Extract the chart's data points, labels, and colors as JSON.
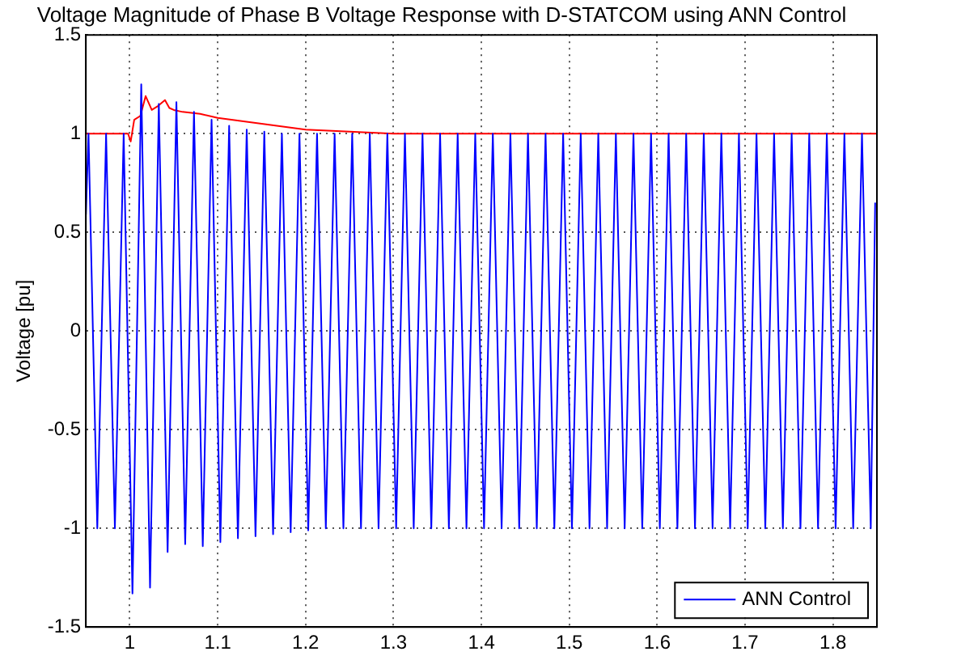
{
  "chart_data": {
    "type": "line",
    "title": "Voltage Magnitude of Phase B Voltage Response with D-STATCOM using ANN Control",
    "ylabel": "Voltage [pu]",
    "xlim": [
      0.95,
      1.85
    ],
    "xticks": [
      1,
      1.1,
      1.2,
      1.3,
      1.4,
      1.5,
      1.6,
      1.7,
      1.8
    ],
    "ylim": [
      -1.5,
      1.5
    ],
    "yticks": [
      -1.5,
      -1,
      -0.5,
      0,
      0.5,
      1,
      1.5
    ],
    "grid": true,
    "legend": "bottom right",
    "marker": "none",
    "line_style": "solid",
    "series": [
      {
        "name": "ANN Control",
        "color": "#0000ff",
        "x": [
          0.95,
          0.953,
          0.963,
          0.973,
          0.983,
          0.993,
          1.003,
          1.013,
          1.023,
          1.033,
          1.043,
          1.053,
          1.063,
          1.073,
          1.083,
          1.093,
          1.103,
          1.113,
          1.123,
          1.133,
          1.143,
          1.153,
          1.163,
          1.173,
          1.183,
          1.193,
          1.203,
          1.213,
          1.223,
          1.233,
          1.243,
          1.253,
          1.263,
          1.273,
          1.283,
          1.293,
          1.303,
          1.313,
          1.323,
          1.333,
          1.343,
          1.353,
          1.363,
          1.373,
          1.383,
          1.393,
          1.403,
          1.413,
          1.423,
          1.433,
          1.443,
          1.453,
          1.463,
          1.473,
          1.483,
          1.493,
          1.503,
          1.513,
          1.523,
          1.533,
          1.543,
          1.553,
          1.563,
          1.573,
          1.583,
          1.593,
          1.603,
          1.613,
          1.623,
          1.633,
          1.643,
          1.653,
          1.663,
          1.673,
          1.683,
          1.693,
          1.703,
          1.713,
          1.723,
          1.733,
          1.743,
          1.753,
          1.763,
          1.773,
          1.783,
          1.793,
          1.803,
          1.813,
          1.823,
          1.833,
          1.843,
          1.848
        ],
        "values": [
          0.59,
          1,
          -1,
          1,
          -1,
          1,
          -1.33,
          1.25,
          -1.3,
          1.15,
          -1.12,
          1.16,
          -1.08,
          1.11,
          -1.09,
          1.07,
          -1.07,
          1.04,
          -1.05,
          1.02,
          -1.04,
          1.01,
          -1.03,
          1,
          -1.02,
          1,
          -1.01,
          1,
          -1,
          1,
          -1,
          1,
          -1,
          1,
          -1,
          1,
          -1,
          1,
          -1,
          1,
          -1,
          1,
          -1,
          1,
          -1,
          1,
          -1,
          1,
          -1,
          1,
          -1,
          1,
          -1,
          1,
          -1,
          1,
          -1,
          1,
          -1,
          1,
          -1,
          1,
          -1,
          1,
          -1,
          1,
          -1,
          1,
          -1,
          1,
          -1,
          1,
          -1,
          1,
          -1,
          1,
          -1,
          1,
          -1,
          1,
          -1,
          1,
          -1,
          1,
          -1,
          1,
          -1,
          1,
          -1,
          1,
          -1,
          0.65
        ]
      },
      {
        "color": "#ff0000",
        "x": [
          0.95,
          0.998,
          1.001,
          1.005,
          1.012,
          1.018,
          1.025,
          1.032,
          1.04,
          1.045,
          1.05,
          1.06,
          1.08,
          1.1,
          1.15,
          1.2,
          1.25,
          1.3,
          1.85
        ],
        "values": [
          1,
          1,
          0.96,
          1.07,
          1.09,
          1.19,
          1.12,
          1.14,
          1.17,
          1.13,
          1.12,
          1.11,
          1.1,
          1.08,
          1.05,
          1.02,
          1.01,
          1,
          1
        ]
      }
    ]
  }
}
